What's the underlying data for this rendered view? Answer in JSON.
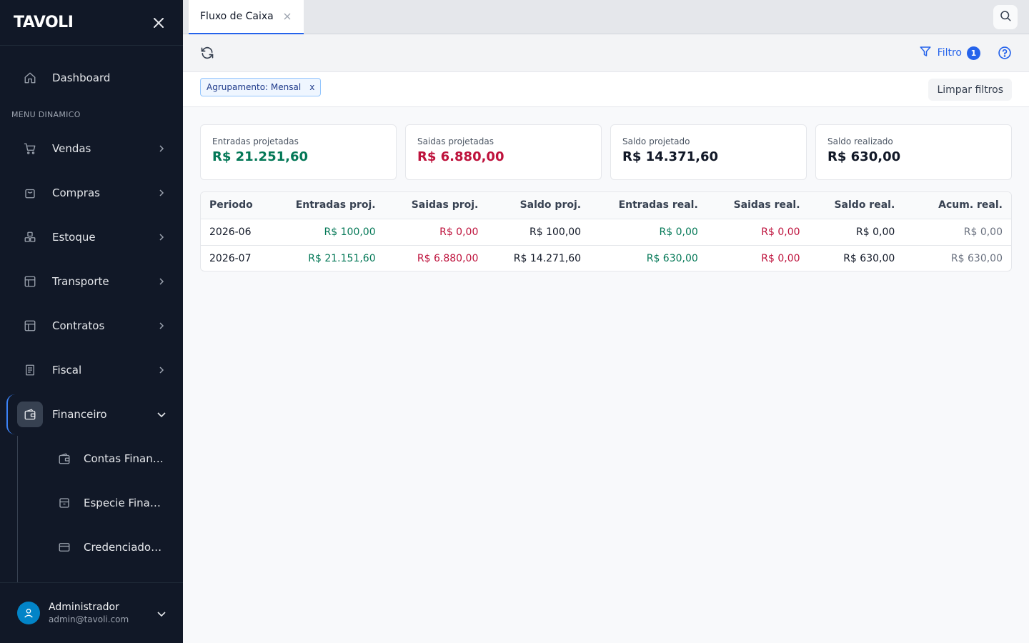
{
  "sidebar": {
    "logo": "TAVOLI",
    "dashboard_label": "Dashboard",
    "section_label": "MENU DINAMICO",
    "items": [
      {
        "label": "Vendas",
        "icon": "cart-icon"
      },
      {
        "label": "Compras",
        "icon": "shopping-bag-icon"
      },
      {
        "label": "Estoque",
        "icon": "boxes-icon"
      },
      {
        "label": "Transporte",
        "icon": "layout-icon"
      },
      {
        "label": "Contratos",
        "icon": "layout-icon"
      },
      {
        "label": "Fiscal",
        "icon": "document-icon"
      },
      {
        "label": "Financeiro",
        "icon": "wallet-icon"
      }
    ],
    "sub_items": [
      {
        "label": "Contas Financeiras",
        "icon": "wallet-icon"
      },
      {
        "label": "Especie Financeira",
        "icon": "archive-icon"
      },
      {
        "label": "Credenciadoras",
        "icon": "credit-card-icon"
      }
    ],
    "user": {
      "name": "Administrador",
      "email": "admin@tavoli.com"
    }
  },
  "tabs": [
    {
      "label": "Fluxo de Caixa"
    }
  ],
  "toolbar": {
    "filter_label": "Filtro",
    "filter_count": "1"
  },
  "filters": {
    "chip_label": "Agrupamento: Mensal",
    "chip_remove": "x",
    "clear_label": "Limpar filtros"
  },
  "summary": [
    {
      "title": "Entradas projetadas",
      "value": "R$ 21.251,60",
      "color": "#047857"
    },
    {
      "title": "Saidas projetadas",
      "value": "R$ 6.880,00",
      "color": "#be123c"
    },
    {
      "title": "Saldo projetado",
      "value": "R$ 14.371,60",
      "color": "#111827"
    },
    {
      "title": "Saldo realizado",
      "value": "R$ 630,00",
      "color": "#111827"
    }
  ],
  "table": {
    "headers": [
      "Periodo",
      "Entradas proj.",
      "Saidas proj.",
      "Saldo proj.",
      "Entradas real.",
      "Saidas real.",
      "Saldo real.",
      "Acum. real."
    ],
    "rows": [
      [
        "2026-06",
        "R$ 100,00",
        "R$ 0,00",
        "R$ 100,00",
        "R$ 0,00",
        "R$ 0,00",
        "R$ 0,00",
        "R$ 0,00"
      ],
      [
        "2026-07",
        "R$ 21.151,60",
        "R$ 6.880,00",
        "R$ 14.271,60",
        "R$ 630,00",
        "R$ 0,00",
        "R$ 630,00",
        "R$ 630,00"
      ]
    ]
  },
  "colors": {
    "accent": "#2563eb",
    "sidebar_bg": "#111827",
    "positive": "#047857",
    "negative": "#be123c"
  }
}
